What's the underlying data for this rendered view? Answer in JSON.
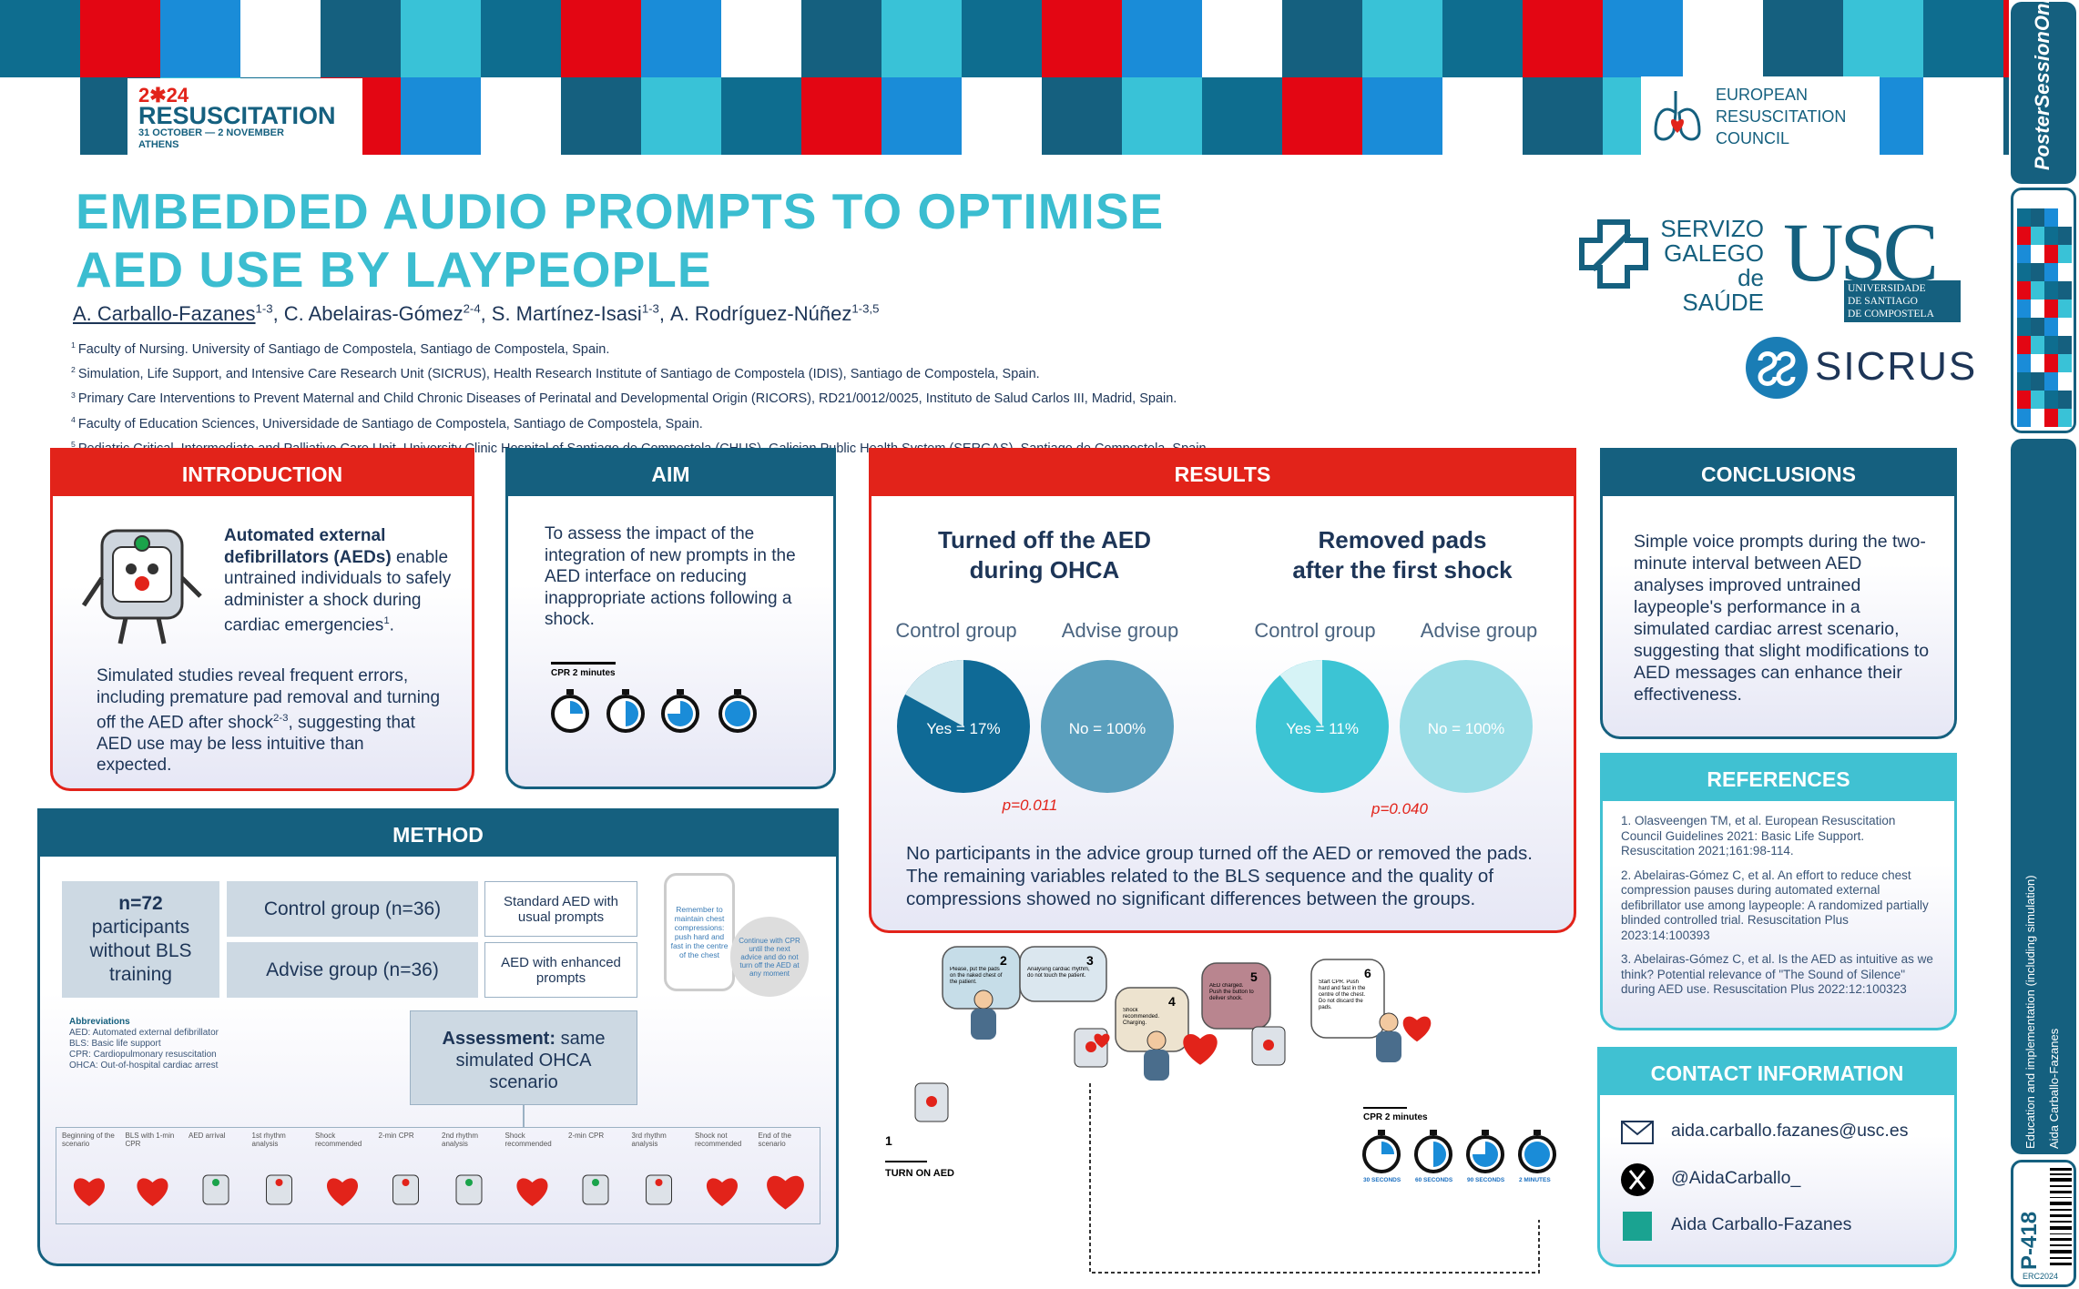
{
  "banner": {
    "event_year": "2✱24",
    "event_name": "RESUSCITATION",
    "event_dates": "31 OCTOBER — 2 NOVEMBER",
    "event_city": "ATHENS",
    "erc": [
      "EUROPEAN",
      "RESUSCITATION",
      "COUNCIL"
    ]
  },
  "sidebar": {
    "brand": "PosterSessionOnline",
    "topic": "Education and implementation (including simulation)",
    "author": "Aida Carballo-Fazanes",
    "poster_id": "P-418",
    "code": "ERC2024"
  },
  "title": [
    "EMBEDDED AUDIO PROMPTS TO OPTIMISE",
    "AED USE BY LAYPEOPLE"
  ],
  "authors": [
    {
      "name": "A. Carballo-Fazanes",
      "affil": "1-3"
    },
    {
      "name": "C. Abelairas-Gómez",
      "affil": "2-4"
    },
    {
      "name": "S. Martínez-Isasi",
      "affil": "1-3"
    },
    {
      "name": "A. Rodríguez-Núñez",
      "affil": "1-3,5"
    }
  ],
  "affiliations": [
    {
      "num": "1",
      "text": "Faculty of Nursing. University of Santiago de Compostela, Santiago de Compostela, Spain."
    },
    {
      "num": "2",
      "text": "Simulation, Life Support, and Intensive Care Research Unit (SICRUS), Health Research Institute of Santiago de Compostela (IDIS), Santiago de Compostela, Spain."
    },
    {
      "num": "3",
      "text": "Primary Care Interventions to Prevent Maternal and Child Chronic Diseases of Perinatal and Developmental Origin (RICORS), RD21/0012/0025, Instituto de Salud Carlos III, Madrid, Spain."
    },
    {
      "num": "4",
      "text": "Faculty of Education Sciences, Universidade de Santiago de Compostela, Santiago de Compostela, Spain."
    },
    {
      "num": "5",
      "text": "Pediatric Critical, Intermediate and Palliative Care Unit, University Clinic Hospital of Santiago de Compostela (CHUS), Galician Public Health System (SERGAS), Santiago de Compostela, Spain."
    }
  ],
  "logos": {
    "sergas": [
      "SERVIZO",
      "GALEGO",
      "de SAÚDE"
    ],
    "usc": "USC",
    "usc_name": [
      "UNIVERSIDADE",
      "DE SANTIAGO",
      "DE COMPOSTELA"
    ],
    "sicrus": "SICRUS"
  },
  "introduction": {
    "heading": "INTRODUCTION",
    "lead_bold": "Automated external defibrillators (AEDs)",
    "lead_text": "enable untrained individuals to safely administer a shock during cardiac emergencies",
    "lead_ref": "1",
    "lead_end": ".",
    "body_a": "Simulated studies reveal frequent errors, including premature pad removal and turning off the AED after shock",
    "body_ref": "2-3",
    "body_b": ", suggesting that AED use may be less intuitive than expected."
  },
  "aim": {
    "heading": "AIM",
    "text": "To assess the impact of the integration of new prompts in the AED interface on reducing inappropriate actions following a shock.",
    "timer_label": "CPR 2 minutes"
  },
  "results": {
    "heading": "RESULTS",
    "charts": [
      {
        "title": [
          "Turned off the AED",
          "during OHCA"
        ],
        "groups": [
          {
            "name": "Control group",
            "value": 17,
            "label": "Yes = 17%"
          },
          {
            "name": "Advise group",
            "value": 100,
            "label": "No = 100%"
          }
        ],
        "p_value": "p=0.011"
      },
      {
        "title": [
          "Removed pads",
          "after the first shock"
        ],
        "groups": [
          {
            "name": "Control group",
            "value": 11,
            "label": "Yes = 11%"
          },
          {
            "name": "Advise group",
            "value": 100,
            "label": "No = 100%"
          }
        ],
        "p_value": "p=0.040"
      }
    ],
    "summary": "No participants in the advice group turned off the AED or removed the pads. The remaining variables related to the BLS sequence and the quality of compressions showed no significant differences between the groups."
  },
  "conclusions": {
    "heading": "CONCLUSIONS",
    "text": "Simple voice prompts during the two-minute interval between AED analyses improved untrained laypeople's performance in a simulated cardiac arrest scenario, suggesting that slight modifications to AED messages can enhance their effectiveness."
  },
  "references": {
    "heading": "REFERENCES",
    "items": [
      "1. Olasveengen TM, et al. European Resuscitation Council Guidelines 2021: Basic Life Support. Resuscitation 2021;161:98-114.",
      "2. Abelairas-Gómez C, et al. An effort to reduce chest compression pauses during automated external defibrillator use among laypeople: A randomized partially blinded controlled trial. Resuscitation Plus 2023:14:100393",
      "3. Abelairas-Gómez C, et al. Is the AED as intuitive as we think? Potential relevance of \"The Sound of Silence\" during AED use. Resuscitation Plus 2022:12:100323"
    ]
  },
  "contact": {
    "heading": "CONTACT INFORMATION",
    "email": "aida.carballo.fazanes@usc.es",
    "twitter": "@AidaCarballo_",
    "researchgate": "Aida Carballo-Fazanes"
  },
  "method": {
    "heading": "METHOD",
    "sample_n": "n=72",
    "sample_text": "participants without BLS training",
    "groups": [
      "Control group (n=36)",
      "Advise group (n=36)"
    ],
    "prompts": [
      "Standard AED with usual prompts",
      "AED with enhanced prompts"
    ],
    "bubbles": [
      "Remember to maintain chest compressions: push hard and fast in the centre of the chest",
      "Continue with CPR until the next advice and do not turn off the AED at any moment"
    ],
    "assessment_bold": "Assessment:",
    "assessment_text": "same simulated OHCA scenario",
    "abbreviations": {
      "heading": "Abbreviations",
      "items": [
        "AED: Automated external defibrillator",
        "BLS: Basic life support",
        "CPR: Cardiopulmonary resuscitation",
        "OHCA: Out-of-hospital cardiac arrest"
      ]
    },
    "timeline": [
      "Beginning of the scenario",
      "BLS with 1-min CPR",
      "AED arrival",
      "1st rhythm analysis",
      "Shock recommended",
      "2-min CPR",
      "2nd rhythm analysis",
      "Shock recommended",
      "2-min CPR",
      "3rd rhythm analysis",
      "Shock not recommended",
      "End of the scenario"
    ]
  },
  "storyboard": {
    "steps": [
      "1",
      "2",
      "3",
      "4",
      "5",
      "6"
    ],
    "start_label": "TURN ON AED",
    "bubbles": [
      "Please, put the pads on the naked chest of the patient.",
      "Analysing cardiac rhythm, do not touch the patient.",
      "Shock recommended. Charging.",
      "AED charged. Push the button to deliver shock.",
      "Start CPR. Push hard and fast in the centre of the chest. Do not discard the pads."
    ],
    "timer_label": "CPR 2 minutes",
    "timers": [
      "30 SECONDS",
      "60 SECONDS",
      "90 SECONDS",
      "2 MINUTES"
    ]
  }
}
